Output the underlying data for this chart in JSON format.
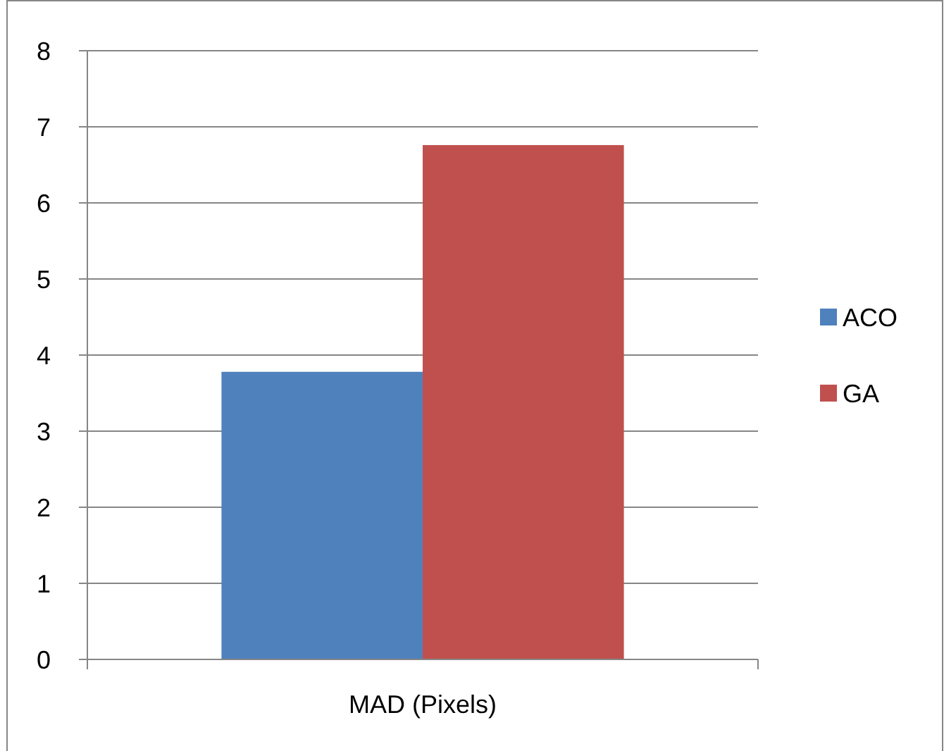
{
  "chart_data": {
    "type": "bar",
    "categories": [
      "MAD (Pixels)"
    ],
    "series": [
      {
        "name": "ACO",
        "color": "#4f81bd",
        "values": [
          3.78
        ]
      },
      {
        "name": "GA",
        "color": "#c0504d",
        "values": [
          6.76
        ]
      }
    ],
    "ylim": [
      0,
      8
    ],
    "yticks": [
      0,
      1,
      2,
      3,
      4,
      5,
      6,
      7,
      8
    ],
    "grid": "y",
    "legend": "right"
  }
}
